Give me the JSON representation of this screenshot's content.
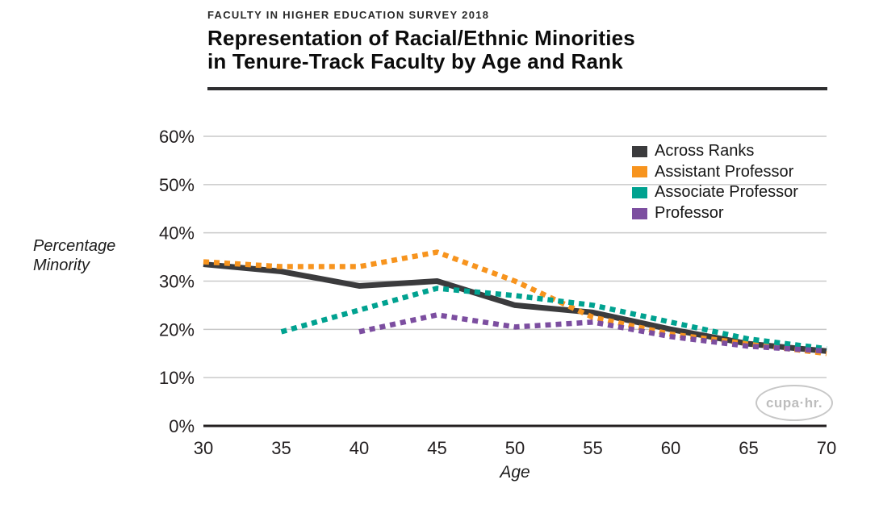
{
  "header": {
    "kicker": "FACULTY IN HIGHER EDUCATION SURVEY 2018",
    "title_line1": "Representation of Racial/Ethnic Minorities",
    "title_line2": "in Tenure-Track Faculty by Age and Rank"
  },
  "chart_data": {
    "type": "line",
    "x": [
      30,
      35,
      40,
      45,
      50,
      55,
      60,
      65,
      70
    ],
    "xlabel": "Age",
    "ylabel": "Percentage Minority",
    "ylim": [
      0,
      60
    ],
    "y_tick_labels": [
      "0%",
      "10%",
      "20%",
      "30%",
      "40%",
      "50%",
      "60%"
    ],
    "grid": "horizontal-only",
    "legend_position": "top-right-inside",
    "series": [
      {
        "name": "Across Ranks",
        "color": "#3b3b3d",
        "style": "solid",
        "values": [
          33.5,
          32,
          29,
          30,
          25,
          23.5,
          20,
          17,
          15.5
        ]
      },
      {
        "name": "Assistant Professor",
        "color": "#f7941e",
        "style": "dotted",
        "values": [
          34,
          33,
          33,
          36,
          30,
          22.5,
          19,
          17,
          15
        ]
      },
      {
        "name": "Associate Professor",
        "color": "#00a290",
        "style": "dotted",
        "values": [
          null,
          19.5,
          24,
          28.5,
          27,
          25,
          21.5,
          18,
          16
        ]
      },
      {
        "name": "Professor",
        "color": "#7c4ea0",
        "style": "dotted",
        "values": [
          null,
          null,
          19.5,
          23,
          20.5,
          21.5,
          18.5,
          16.5,
          15.5
        ]
      }
    ]
  },
  "logo": {
    "text": "cupa·hr."
  }
}
